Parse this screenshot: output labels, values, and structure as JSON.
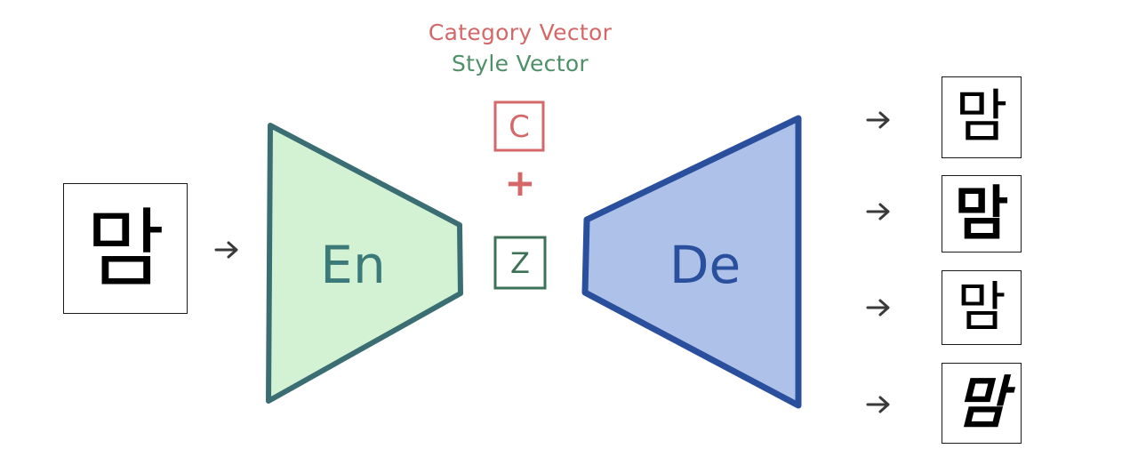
{
  "legend": {
    "category_label": "Category Vector",
    "style_label": "Style Vector"
  },
  "input_glyph": "맘",
  "encoder": {
    "label": "En"
  },
  "decoder": {
    "label": "De"
  },
  "category_vector": {
    "symbol": "C"
  },
  "plus_symbol": "+",
  "style_vector": {
    "symbol": "Z"
  },
  "output_glyphs": [
    "맘",
    "맘",
    "맘",
    "맘"
  ],
  "colors": {
    "category": "#d46868",
    "style": "#4f8f68",
    "encoder_fill": "#d3f2d4",
    "encoder_stroke": "#3b6e73",
    "encoder_text": "#3b7a78",
    "decoder_fill": "#aec2e9",
    "decoder_stroke": "#2a4f9c",
    "decoder_text": "#2a4f9c",
    "arrow": "#3a3a3a"
  }
}
